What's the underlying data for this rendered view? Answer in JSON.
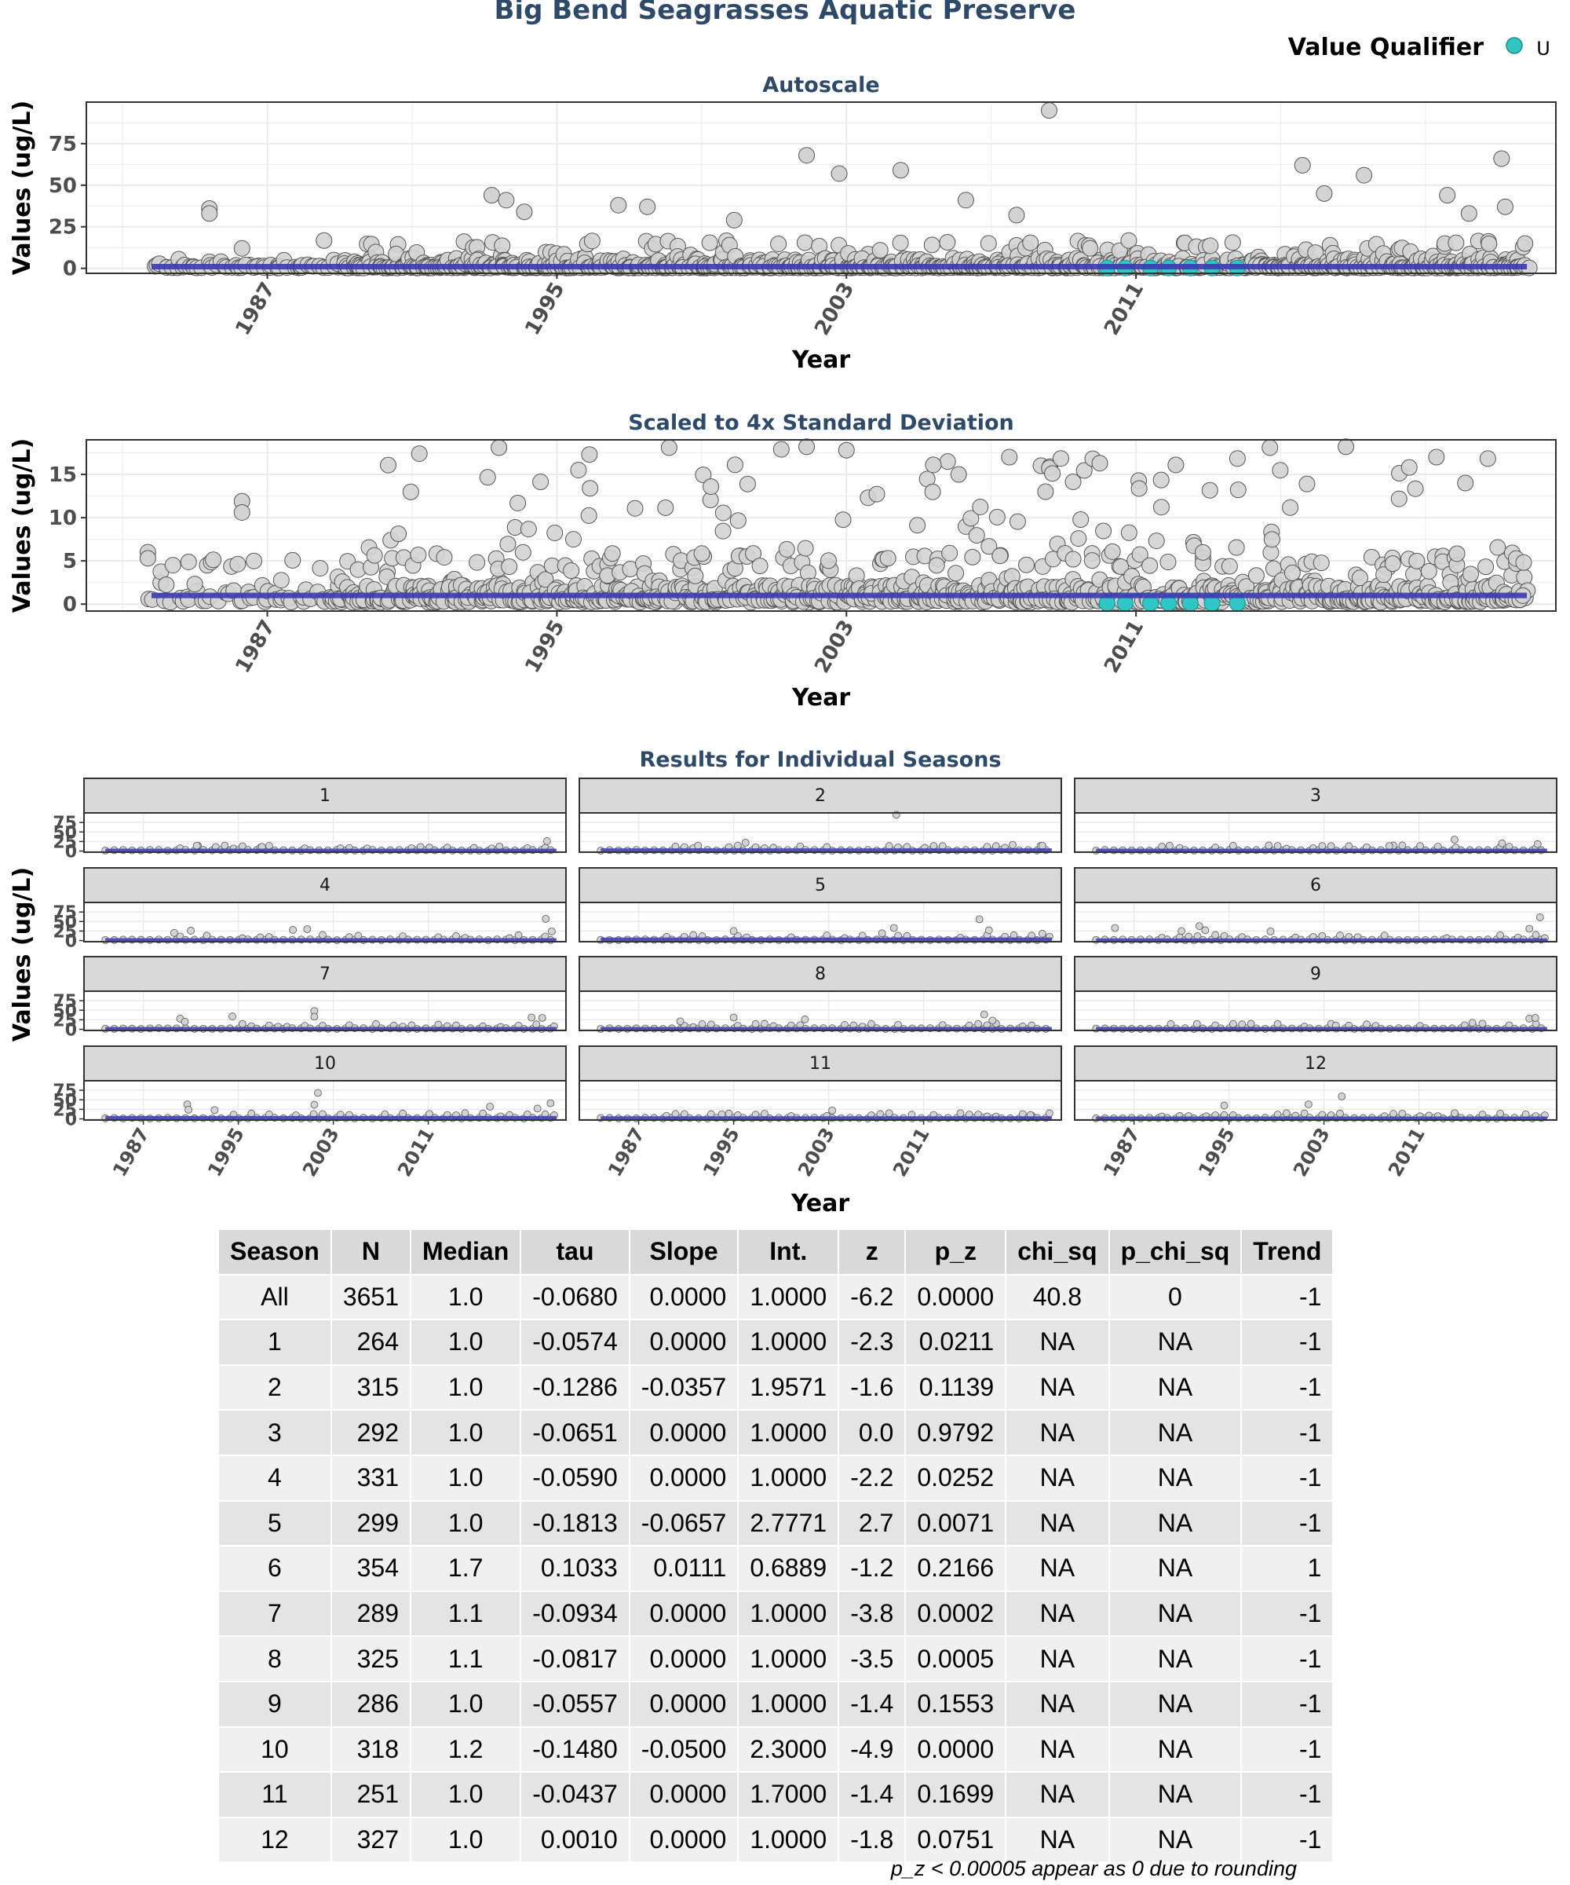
{
  "title": "Big Bend Seagrasses Aquatic Preserve",
  "legend": {
    "title": "Value Qualifier",
    "label": "U",
    "color": "#2ec7c5",
    "position": "top-right"
  },
  "colors": {
    "point_fill": "#d3d3d3",
    "point_stroke": "#555555",
    "trend_line": "#3b3bb0",
    "qualifier_fill": "#2ec7c5",
    "strip_fill": "#d9d9d9"
  },
  "chart_data": [
    {
      "type": "scatter",
      "title": "Autoscale",
      "xlabel": "Year",
      "ylabel": "Values (ug/L)",
      "xlim": [
        1982,
        2022.6
      ],
      "ylim": [
        -3,
        100
      ],
      "x_ticks": [
        1987,
        1995,
        2003,
        2011
      ],
      "y_ticks": [
        0,
        25,
        50,
        75
      ],
      "grid": true,
      "trend": {
        "x": [
          1983.8,
          2021.8
        ],
        "y": [
          1.0,
          1.0
        ]
      },
      "outliers": [
        [
          1985.4,
          36
        ],
        [
          1985.4,
          33
        ],
        [
          1986.3,
          12
        ],
        [
          1993.2,
          44
        ],
        [
          1993.6,
          41
        ],
        [
          1994.1,
          34
        ],
        [
          1996.7,
          38
        ],
        [
          1997.5,
          37
        ],
        [
          1999.9,
          29
        ],
        [
          2001.9,
          68
        ],
        [
          2002.8,
          57
        ],
        [
          2004.5,
          59
        ],
        [
          2006.3,
          41
        ],
        [
          2007.7,
          32
        ],
        [
          2008.6,
          95
        ],
        [
          2015.6,
          62
        ],
        [
          2016.2,
          45
        ],
        [
          2017.3,
          56
        ],
        [
          2019.6,
          44
        ],
        [
          2021.1,
          66
        ],
        [
          2021.2,
          37
        ],
        [
          2020.2,
          33
        ]
      ],
      "qualifier_points": [
        [
          2010.2,
          0.2
        ],
        [
          2010.7,
          0.2
        ],
        [
          2011.4,
          0.2
        ],
        [
          2011.9,
          0.2
        ],
        [
          2012.5,
          0.2
        ],
        [
          2013.1,
          0.2
        ],
        [
          2013.8,
          0.2
        ]
      ]
    },
    {
      "type": "scatter",
      "title": "Scaled to 4x Standard Deviation",
      "xlabel": "Year",
      "ylabel": "Values (ug/L)",
      "xlim": [
        1982,
        2022.6
      ],
      "ylim": [
        -0.8,
        19
      ],
      "x_ticks": [
        1987,
        1995,
        2003,
        2011
      ],
      "y_ticks": [
        0,
        5,
        10,
        15
      ],
      "grid": true,
      "trend": {
        "x": [
          1983.8,
          2021.8
        ],
        "y": [
          1.0,
          1.0
        ]
      },
      "outliers": [
        [
          1986.3,
          11.9
        ],
        [
          1986.3,
          10.6
        ],
        [
          1983.7,
          6.0
        ],
        [
          1983.7,
          5.3
        ],
        [
          1991.2,
          17.4
        ],
        [
          1993.4,
          18.1
        ],
        [
          1995.9,
          17.3
        ],
        [
          1998.1,
          18.1
        ],
        [
          2001.2,
          17.9
        ],
        [
          2001.9,
          18.2
        ],
        [
          2003.0,
          17.8
        ],
        [
          2005.4,
          16.1
        ],
        [
          2006.1,
          15.0
        ],
        [
          2007.5,
          17.0
        ],
        [
          2008.5,
          13.0
        ],
        [
          2010.0,
          16.3
        ],
        [
          2012.1,
          16.1
        ],
        [
          2014.7,
          18.1
        ],
        [
          2016.8,
          18.2
        ],
        [
          2019.3,
          17.0
        ],
        [
          2020.1,
          14.0
        ]
      ],
      "qualifier_points": [
        [
          2010.2,
          0.1
        ],
        [
          2010.7,
          0.1
        ],
        [
          2011.4,
          0.1
        ],
        [
          2011.9,
          0.1
        ],
        [
          2012.5,
          0.1
        ],
        [
          2013.1,
          0.1
        ],
        [
          2013.8,
          0.1
        ]
      ]
    },
    {
      "type": "scatter",
      "title": "Results for Individual Seasons",
      "xlabel": "Year",
      "ylabel": "Values (ug/L)",
      "xlim": [
        1982,
        2022.6
      ],
      "ylim": [
        -3,
        100
      ],
      "x_ticks": [
        1987,
        1995,
        2003,
        2011
      ],
      "y_ticks": [
        0,
        25,
        50,
        75
      ],
      "grid": true,
      "facets": [
        {
          "season": "1",
          "trend_y": 1.0,
          "peaks": [
            [
              1991.5,
              14
            ],
            [
              1997.0,
              11
            ],
            [
              2017.0,
              12
            ],
            [
              2021.0,
              26
            ]
          ]
        },
        {
          "season": "2",
          "trend_y": 2.0,
          "peaks": [
            [
              1992.0,
              14
            ],
            [
              1996.0,
              22
            ],
            [
              2008.7,
              95
            ],
            [
              2018.5,
              16
            ],
            [
              2021.0,
              14
            ]
          ]
        },
        {
          "season": "3",
          "trend_y": 1.0,
          "peaks": [
            [
              1990.0,
              14
            ],
            [
              2008.5,
              13
            ],
            [
              2014.0,
              30
            ],
            [
              2018.0,
              20
            ],
            [
              2021.0,
              18
            ]
          ]
        },
        {
          "season": "4",
          "trend_y": 1.0,
          "peaks": [
            [
              1989.6,
              20
            ],
            [
              1991.0,
              26
            ],
            [
              1999.6,
              28
            ],
            [
              2000.8,
              30
            ],
            [
              2020.9,
              57
            ],
            [
              2021.4,
              24
            ]
          ]
        },
        {
          "season": "5",
          "trend_y": 2.8,
          "peaks": [
            [
              1995.0,
              25
            ],
            [
              2007.5,
              19
            ],
            [
              2008.5,
              33
            ],
            [
              2015.7,
              56
            ],
            [
              2016.5,
              27
            ],
            [
              2021.0,
              18
            ]
          ]
        },
        {
          "season": "6",
          "trend_y": 0.7,
          "peaks": [
            [
              1985.4,
              33
            ],
            [
              1991.0,
              25
            ],
            [
              1992.5,
              38
            ],
            [
              1993.0,
              27
            ],
            [
              1998.5,
              24
            ],
            [
              2020.3,
              31
            ],
            [
              2021.2,
              61
            ]
          ]
        },
        {
          "season": "7",
          "trend_y": 1.0,
          "peaks": [
            [
              1990.1,
              28
            ],
            [
              1990.5,
              20
            ],
            [
              1994.5,
              34
            ],
            [
              2001.4,
              48
            ],
            [
              2001.4,
              33
            ],
            [
              2019.7,
              31
            ],
            [
              2020.6,
              30
            ]
          ]
        },
        {
          "season": "8",
          "trend_y": 1.0,
          "peaks": [
            [
              1990.5,
              21
            ],
            [
              1995.0,
              31
            ],
            [
              2001.0,
              26
            ],
            [
              2016.1,
              39
            ],
            [
              2016.8,
              23
            ]
          ]
        },
        {
          "season": "9",
          "trend_y": 1.0,
          "peaks": [
            [
              1992.3,
              14
            ],
            [
              2004.0,
              10
            ],
            [
              2015.5,
              17
            ],
            [
              2020.3,
              28
            ],
            [
              2020.8,
              30
            ]
          ]
        },
        {
          "season": "10",
          "trend_y": 2.3,
          "peaks": [
            [
              1990.7,
              38
            ],
            [
              1990.8,
              24
            ],
            [
              1993.0,
              23
            ],
            [
              2001.7,
              68
            ],
            [
              2001.4,
              37
            ],
            [
              2016.2,
              32
            ],
            [
              2021.3,
              41
            ],
            [
              2020.2,
              27
            ]
          ]
        },
        {
          "season": "11",
          "trend_y": 1.7,
          "peaks": [
            [
              1994.0,
              12
            ],
            [
              2003.3,
              22
            ],
            [
              2010.0,
              11
            ],
            [
              2020.0,
              10
            ]
          ]
        },
        {
          "season": "12",
          "trend_y": 1.0,
          "peaks": [
            [
              1994.6,
              35
            ],
            [
              2001.7,
              38
            ],
            [
              2004.5,
              59
            ],
            [
              2014.0,
              15
            ],
            [
              2020.0,
              12
            ]
          ]
        }
      ]
    }
  ],
  "table": {
    "headers": [
      "Season",
      "N",
      "Median",
      "tau",
      "Slope",
      "Int.",
      "z",
      "p_z",
      "chi_sq",
      "p_chi_sq",
      "Trend"
    ],
    "rows": [
      [
        "All",
        "3651",
        "1.0",
        "-0.0680",
        "0.0000",
        "1.0000",
        "-6.2",
        "0.0000",
        "40.8",
        "0",
        "-1"
      ],
      [
        "1",
        "264",
        "1.0",
        "-0.0574",
        "0.0000",
        "1.0000",
        "-2.3",
        "0.0211",
        "NA",
        "NA",
        "-1"
      ],
      [
        "2",
        "315",
        "1.0",
        "-0.1286",
        "-0.0357",
        "1.9571",
        "-1.6",
        "0.1139",
        "NA",
        "NA",
        "-1"
      ],
      [
        "3",
        "292",
        "1.0",
        "-0.0651",
        "0.0000",
        "1.0000",
        "0.0",
        "0.9792",
        "NA",
        "NA",
        "-1"
      ],
      [
        "4",
        "331",
        "1.0",
        "-0.0590",
        "0.0000",
        "1.0000",
        "-2.2",
        "0.0252",
        "NA",
        "NA",
        "-1"
      ],
      [
        "5",
        "299",
        "1.0",
        "-0.1813",
        "-0.0657",
        "2.7771",
        "2.7",
        "0.0071",
        "NA",
        "NA",
        "-1"
      ],
      [
        "6",
        "354",
        "1.7",
        "0.1033",
        "0.0111",
        "0.6889",
        "-1.2",
        "0.2166",
        "NA",
        "NA",
        "1"
      ],
      [
        "7",
        "289",
        "1.1",
        "-0.0934",
        "0.0000",
        "1.0000",
        "-3.8",
        "0.0002",
        "NA",
        "NA",
        "-1"
      ],
      [
        "8",
        "325",
        "1.1",
        "-0.0817",
        "0.0000",
        "1.0000",
        "-3.5",
        "0.0005",
        "NA",
        "NA",
        "-1"
      ],
      [
        "9",
        "286",
        "1.0",
        "-0.0557",
        "0.0000",
        "1.0000",
        "-1.4",
        "0.1553",
        "NA",
        "NA",
        "-1"
      ],
      [
        "10",
        "318",
        "1.2",
        "-0.1480",
        "-0.0500",
        "2.3000",
        "-4.9",
        "0.0000",
        "NA",
        "NA",
        "-1"
      ],
      [
        "11",
        "251",
        "1.0",
        "-0.0437",
        "0.0000",
        "1.7000",
        "-1.4",
        "0.1699",
        "NA",
        "NA",
        "-1"
      ],
      [
        "12",
        "327",
        "1.0",
        "0.0010",
        "0.0000",
        "1.0000",
        "-1.8",
        "0.0751",
        "NA",
        "NA",
        "-1"
      ]
    ],
    "footnote": "p_z < 0.00005 appear as 0 due to rounding"
  }
}
